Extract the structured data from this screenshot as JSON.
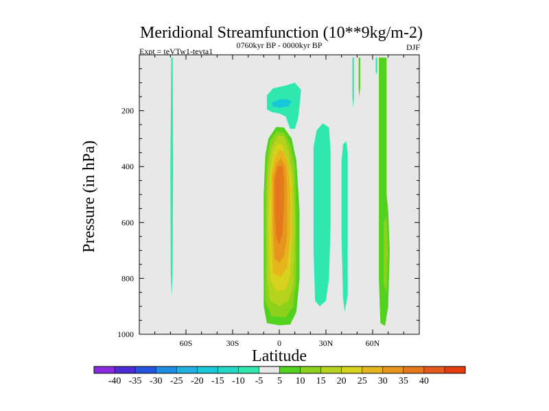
{
  "chart_data": {
    "type": "heatmap",
    "title": "Meridional Streamfunction (10**9kg/m-2)",
    "left_subtitle": "Expt = teVTw1-tevta1",
    "center_subtitle": "0760kyr BP - 0000kyr BP",
    "right_subtitle": "DJF",
    "xlabel": "Latitude",
    "ylabel": "Pressure (in hPa)",
    "x_ticks": [
      {
        "value": -60,
        "label": "60S"
      },
      {
        "value": -30,
        "label": "30S"
      },
      {
        "value": 0,
        "label": "0"
      },
      {
        "value": 30,
        "label": "30N"
      },
      {
        "value": 60,
        "label": "60N"
      }
    ],
    "y_ticks": [
      {
        "value": 200,
        "label": "200"
      },
      {
        "value": 400,
        "label": "400"
      },
      {
        "value": 600,
        "label": "600"
      },
      {
        "value": 800,
        "label": "800"
      },
      {
        "value": 1000,
        "label": "1000"
      }
    ],
    "xlim": [
      -90,
      90
    ],
    "ylim": [
      1000,
      0
    ],
    "colorbar": {
      "colors": [
        "#8a2be2",
        "#4b2bd6",
        "#2455e0",
        "#1f8fe6",
        "#1fb1e0",
        "#18c8d8",
        "#22d8c4",
        "#2ee8b0",
        "#e8e8e8",
        "#52d21c",
        "#8cd21c",
        "#b5d21c",
        "#d8d21c",
        "#e6b41c",
        "#e6961c",
        "#e6781c",
        "#e65a1c",
        "#e63c10"
      ],
      "labels": [
        "-40",
        "-35",
        "-30",
        "-25",
        "-20",
        "-15",
        "-10",
        "-5",
        "5",
        "10",
        "15",
        "20",
        "25",
        "30",
        "35",
        "40"
      ]
    },
    "regions": [
      {
        "name": "south-polar-band",
        "level": -5,
        "color": "#2ee8b0",
        "points": [
          [
            -69.5,
            10
          ],
          [
            -68.5,
            10
          ],
          [
            -68.3,
            400
          ],
          [
            -68.6,
            780
          ],
          [
            -69.2,
            865
          ],
          [
            -69.8,
            780
          ],
          [
            -70,
            400
          ]
        ]
      },
      {
        "name": "upper-negative-outer",
        "level": -5,
        "color": "#2ee8b0",
        "points": [
          [
            -8,
            145
          ],
          [
            -4,
            120
          ],
          [
            4,
            110
          ],
          [
            10,
            100
          ],
          [
            14,
            125
          ],
          [
            13,
            185
          ],
          [
            12,
            230
          ],
          [
            10,
            265
          ],
          [
            7,
            265
          ],
          [
            4,
            220
          ],
          [
            0,
            210
          ],
          [
            -5,
            205
          ],
          [
            -8,
            195
          ]
        ]
      },
      {
        "name": "upper-negative-inner",
        "level": -10,
        "color": "#18c8d8",
        "points": [
          [
            -5,
            172
          ],
          [
            0,
            160
          ],
          [
            4,
            158
          ],
          [
            8,
            165
          ],
          [
            6,
            185
          ],
          [
            0,
            190
          ],
          [
            -4,
            185
          ]
        ]
      },
      {
        "name": "tropical-cell-5",
        "level": 5,
        "color": "#52d21c",
        "points": [
          [
            -9,
            360
          ],
          [
            -7,
            300
          ],
          [
            -2,
            258
          ],
          [
            3,
            260
          ],
          [
            8,
            300
          ],
          [
            11,
            380
          ],
          [
            13,
            560
          ],
          [
            13,
            800
          ],
          [
            11,
            920
          ],
          [
            7,
            965
          ],
          [
            0,
            968
          ],
          [
            -8,
            960
          ],
          [
            -10,
            900
          ],
          [
            -10,
            500
          ]
        ]
      },
      {
        "name": "tropical-cell-10",
        "level": 10,
        "color": "#8cd21c",
        "points": [
          [
            -8,
            380
          ],
          [
            -6,
            310
          ],
          [
            -2,
            275
          ],
          [
            3,
            278
          ],
          [
            7,
            320
          ],
          [
            10,
            400
          ],
          [
            11,
            600
          ],
          [
            11,
            800
          ],
          [
            9,
            900
          ],
          [
            4,
            940
          ],
          [
            -5,
            935
          ],
          [
            -9,
            880
          ],
          [
            -9,
            500
          ]
        ]
      },
      {
        "name": "tropical-cell-15",
        "level": 15,
        "color": "#b5d21c",
        "points": [
          [
            -7,
            400
          ],
          [
            -5,
            330
          ],
          [
            -1,
            290
          ],
          [
            3,
            292
          ],
          [
            6,
            340
          ],
          [
            9,
            430
          ],
          [
            10,
            620
          ],
          [
            9,
            820
          ],
          [
            6,
            880
          ],
          [
            0,
            900
          ],
          [
            -6,
            880
          ],
          [
            -8,
            800
          ],
          [
            -8,
            500
          ]
        ]
      },
      {
        "name": "tropical-cell-20",
        "level": 20,
        "color": "#d8d21c",
        "points": [
          [
            -6,
            420
          ],
          [
            -4,
            350
          ],
          [
            -1,
            318
          ],
          [
            2,
            320
          ],
          [
            5,
            370
          ],
          [
            8,
            450
          ],
          [
            8,
            650
          ],
          [
            7,
            790
          ],
          [
            4,
            840
          ],
          [
            -2,
            845
          ],
          [
            -6,
            800
          ],
          [
            -7,
            600
          ]
        ]
      },
      {
        "name": "tropical-cell-25",
        "level": 25,
        "color": "#e6b41c",
        "points": [
          [
            -5,
            430
          ],
          [
            -3,
            370
          ],
          [
            0,
            340
          ],
          [
            3,
            345
          ],
          [
            6,
            400
          ],
          [
            7,
            480
          ],
          [
            7,
            650
          ],
          [
            5,
            760
          ],
          [
            1,
            795
          ],
          [
            -4,
            780
          ],
          [
            -5,
            650
          ]
        ]
      },
      {
        "name": "tropical-cell-30",
        "level": 30,
        "color": "#e6961c",
        "points": [
          [
            -4,
            440
          ],
          [
            -2,
            390
          ],
          [
            1,
            370
          ],
          [
            4,
            400
          ],
          [
            5,
            470
          ],
          [
            5,
            650
          ],
          [
            3,
            720
          ],
          [
            0,
            745
          ],
          [
            -3,
            730
          ],
          [
            -4,
            600
          ]
        ]
      },
      {
        "name": "tropical-cell-35",
        "level": 35,
        "color": "#e6781c",
        "points": [
          [
            -3,
            450
          ],
          [
            -1,
            400
          ],
          [
            2,
            395
          ],
          [
            3,
            440
          ],
          [
            3,
            540
          ],
          [
            2,
            640
          ],
          [
            0,
            680
          ],
          [
            -2,
            650
          ],
          [
            -3,
            560
          ]
        ]
      },
      {
        "name": "nh-negative-band-1",
        "level": -5,
        "color": "#2ee8b0",
        "points": [
          [
            22,
            330
          ],
          [
            24,
            270
          ],
          [
            28,
            245
          ],
          [
            32,
            260
          ],
          [
            33,
            350
          ],
          [
            33,
            600
          ],
          [
            32,
            800
          ],
          [
            30,
            880
          ],
          [
            26,
            900
          ],
          [
            23,
            880
          ],
          [
            22,
            700
          ],
          [
            22,
            500
          ]
        ]
      },
      {
        "name": "nh-negative-band-2",
        "level": -5,
        "color": "#2ee8b0",
        "points": [
          [
            40,
            380
          ],
          [
            41,
            320
          ],
          [
            43,
            310
          ],
          [
            44,
            350
          ],
          [
            44,
            600
          ],
          [
            44,
            860
          ],
          [
            42,
            920
          ],
          [
            41,
            870
          ],
          [
            40,
            650
          ]
        ]
      },
      {
        "name": "nh-thin-strip-1",
        "level": -5,
        "color": "#2ee8b0",
        "points": [
          [
            47,
            10
          ],
          [
            48,
            10
          ],
          [
            48,
            150
          ],
          [
            47.5,
            190
          ],
          [
            47,
            150
          ]
        ]
      },
      {
        "name": "nh-thin-strip-2",
        "level": 5,
        "color": "#52d21c",
        "points": [
          [
            51,
            10
          ],
          [
            52,
            10
          ],
          [
            52,
            120
          ],
          [
            51.5,
            150
          ],
          [
            51,
            120
          ]
        ]
      },
      {
        "name": "nh-thin-strip-3",
        "level": -5,
        "color": "#2ee8b0",
        "points": [
          [
            62,
            10
          ],
          [
            63,
            10
          ],
          [
            63,
            60
          ],
          [
            62.5,
            70
          ],
          [
            62,
            60
          ]
        ]
      },
      {
        "name": "nh-positive-outer",
        "level": 5,
        "color": "#52d21c",
        "points": [
          [
            64,
            10
          ],
          [
            69,
            10
          ],
          [
            69,
            300
          ],
          [
            69,
            500
          ],
          [
            70,
            560
          ],
          [
            71,
            700
          ],
          [
            70,
            900
          ],
          [
            68,
            970
          ],
          [
            65,
            960
          ],
          [
            64,
            800
          ],
          [
            64,
            600
          ],
          [
            64,
            300
          ]
        ]
      },
      {
        "name": "nh-positive-inner",
        "level": 10,
        "color": "#8cd21c",
        "points": [
          [
            67,
            600
          ],
          [
            69,
            580
          ],
          [
            70,
            700
          ],
          [
            69,
            850
          ],
          [
            67,
            820
          ]
        ]
      }
    ]
  }
}
